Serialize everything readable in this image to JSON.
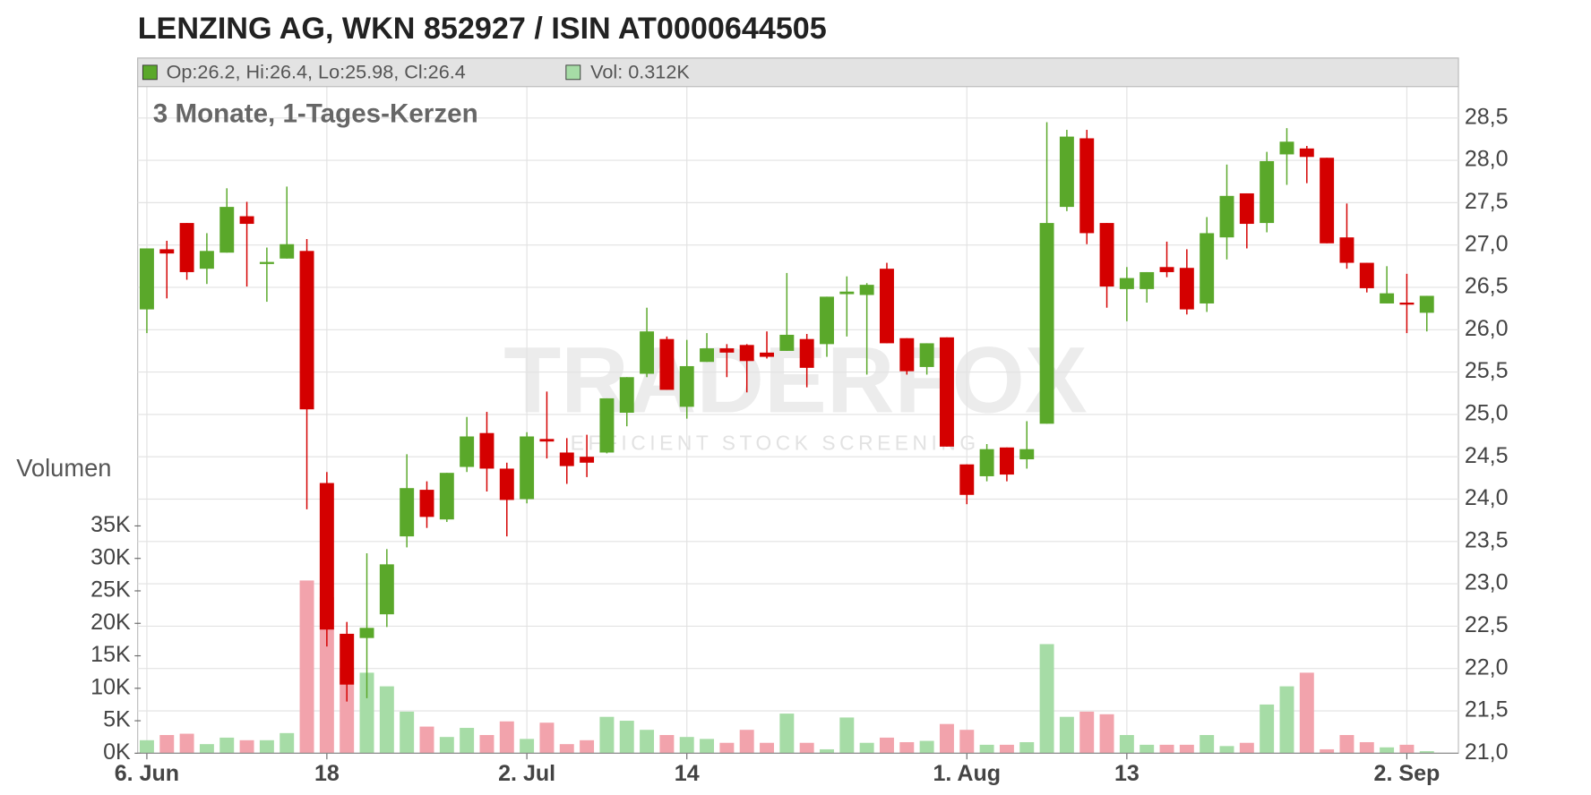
{
  "chart_data": {
    "type": "candlestick",
    "title": "LENZING AG, WKN 852927 / ISIN AT0000644505",
    "subtitle": "3 Monate, 1-Tages-Kerzen",
    "y2_label": "Volumen",
    "watermark": {
      "brand": "TRADERFOX",
      "tagline": "EFFICIENT STOCK SCREENING"
    },
    "categories": [
      "6. Jun",
      null,
      null,
      null,
      null,
      null,
      null,
      null,
      null,
      "18",
      null,
      null,
      null,
      null,
      null,
      null,
      null,
      null,
      null,
      "2. Jul",
      null,
      null,
      null,
      null,
      null,
      null,
      null,
      "14",
      null,
      null,
      null,
      null,
      null,
      null,
      null,
      null,
      null,
      null,
      null,
      null,
      null,
      "1. Aug",
      null,
      null,
      null,
      null,
      null,
      null,
      null,
      "13",
      null,
      null,
      null,
      null,
      null,
      null,
      null,
      null,
      null,
      null,
      null,
      null,
      null,
      "2. Sep",
      null
    ],
    "series": [
      {
        "name": "Op:26.2, Hi:26.4, Lo:25.98, Cl:26.4",
        "color": "#5aa82a",
        "down_color": "#d40000",
        "open": [
          26.24,
          26.95,
          27.26,
          26.72,
          26.91,
          27.34,
          26.79,
          26.84,
          26.93,
          24.19,
          22.41,
          22.36,
          22.64,
          23.56,
          24.11,
          23.76,
          24.38,
          24.78,
          24.36,
          24.0,
          24.71,
          24.55,
          24.5,
          24.55,
          25.02,
          25.48,
          25.89,
          25.09,
          25.62,
          25.78,
          25.82,
          25.73,
          25.75,
          25.89,
          25.83,
          26.42,
          26.41,
          26.72,
          25.9,
          25.56,
          25.91,
          24.41,
          24.27,
          24.61,
          24.47,
          24.89,
          27.45,
          28.26,
          27.26,
          26.48,
          26.48,
          26.74,
          26.73,
          26.31,
          27.09,
          27.61,
          27.26,
          28.07,
          28.14,
          28.03,
          27.09,
          26.79,
          26.31,
          26.32,
          26.2
        ],
        "high": [
          26.96,
          27.05,
          27.26,
          27.14,
          27.67,
          27.51,
          26.97,
          27.69,
          27.07,
          24.32,
          22.55,
          23.36,
          23.41,
          24.53,
          24.21,
          24.31,
          24.97,
          25.03,
          24.43,
          24.79,
          25.27,
          24.72,
          24.76,
          25.19,
          25.44,
          26.26,
          25.92,
          25.88,
          25.96,
          25.83,
          25.83,
          25.98,
          26.67,
          25.95,
          26.39,
          26.63,
          26.55,
          26.79,
          25.9,
          25.84,
          25.91,
          24.41,
          24.65,
          24.61,
          24.92,
          28.45,
          28.36,
          28.36,
          27.26,
          26.74,
          26.68,
          27.04,
          26.95,
          27.33,
          27.95,
          27.61,
          28.1,
          28.38,
          28.17,
          28.03,
          27.49,
          26.79,
          26.75,
          26.66,
          26.4
        ],
        "low": [
          25.96,
          26.37,
          26.59,
          26.54,
          26.91,
          26.51,
          26.33,
          26.84,
          23.88,
          22.26,
          21.61,
          21.65,
          22.49,
          23.43,
          23.66,
          23.73,
          24.32,
          24.09,
          23.56,
          23.95,
          24.48,
          24.18,
          24.26,
          24.54,
          24.86,
          25.44,
          25.29,
          24.95,
          25.62,
          25.44,
          25.26,
          25.66,
          25.75,
          25.32,
          25.68,
          25.92,
          25.47,
          25.84,
          25.47,
          25.47,
          24.62,
          23.94,
          24.21,
          24.21,
          24.36,
          24.89,
          27.4,
          27.01,
          26.26,
          26.1,
          26.32,
          26.62,
          26.18,
          26.21,
          26.83,
          26.96,
          27.15,
          27.71,
          27.73,
          27.02,
          26.72,
          26.44,
          26.31,
          25.96,
          25.98
        ],
        "close": [
          26.96,
          26.9,
          26.68,
          26.93,
          27.45,
          27.25,
          26.8,
          27.01,
          25.06,
          22.46,
          21.81,
          22.48,
          23.23,
          24.13,
          23.79,
          24.31,
          24.74,
          24.36,
          23.99,
          24.74,
          24.68,
          24.39,
          24.43,
          25.19,
          25.44,
          25.98,
          25.29,
          25.57,
          25.78,
          25.73,
          25.63,
          25.68,
          25.94,
          25.55,
          26.39,
          26.45,
          26.53,
          25.84,
          25.51,
          25.84,
          24.62,
          24.05,
          24.59,
          24.29,
          24.59,
          27.26,
          28.28,
          27.14,
          26.51,
          26.61,
          26.68,
          26.68,
          26.24,
          27.14,
          27.58,
          27.25,
          27.99,
          28.22,
          28.04,
          27.02,
          26.79,
          26.49,
          26.43,
          26.3,
          26.4
        ]
      },
      {
        "name": "Vol: 0.312K",
        "type": "bar",
        "axis": "y2",
        "color": "#a6dca6",
        "down_color": "#f2a3ac",
        "values": [
          2.0,
          2.8,
          3.0,
          1.4,
          2.4,
          2.0,
          2.0,
          3.1,
          26.6,
          24.0,
          13.0,
          12.4,
          10.3,
          6.4,
          4.1,
          2.5,
          3.9,
          2.8,
          4.9,
          2.2,
          4.7,
          1.4,
          2.0,
          5.6,
          5.0,
          3.6,
          2.8,
          2.5,
          2.2,
          1.6,
          3.6,
          1.6,
          6.1,
          1.6,
          0.6,
          5.5,
          1.6,
          2.4,
          1.7,
          1.9,
          4.5,
          3.6,
          1.3,
          1.3,
          1.7,
          16.8,
          5.6,
          6.4,
          6.0,
          2.8,
          1.3,
          1.3,
          1.3,
          2.8,
          1.1,
          1.6,
          7.5,
          10.3,
          12.4,
          0.6,
          2.8,
          1.7,
          0.9,
          1.3,
          0.312
        ]
      }
    ],
    "ylim": [
      21,
      28.87
    ],
    "yticks": [
      {
        "value": 21,
        "label": "21,0"
      },
      {
        "value": 21.5,
        "label": "21,5"
      },
      {
        "value": 22,
        "label": "22,0"
      },
      {
        "value": 22.5,
        "label": "22,5"
      },
      {
        "value": 23,
        "label": "23,0"
      },
      {
        "value": 23.5,
        "label": "23,5"
      },
      {
        "value": 24,
        "label": "24,0"
      },
      {
        "value": 24.5,
        "label": "24,5"
      },
      {
        "value": 25,
        "label": "25,0"
      },
      {
        "value": 25.5,
        "label": "25,5"
      },
      {
        "value": 26,
        "label": "26,0"
      },
      {
        "value": 26.5,
        "label": "26,5"
      },
      {
        "value": 27,
        "label": "27,0"
      },
      {
        "value": 27.5,
        "label": "27,5"
      },
      {
        "value": 28,
        "label": "28,0"
      },
      {
        "value": 28.5,
        "label": "28,5"
      }
    ],
    "y2lim": [
      0,
      35
    ],
    "y2ticks": [
      {
        "value": 0,
        "label": "0K"
      },
      {
        "value": 5,
        "label": "5K"
      },
      {
        "value": 10,
        "label": "10K"
      },
      {
        "value": 15,
        "label": "15K"
      },
      {
        "value": 20,
        "label": "20K"
      },
      {
        "value": 25,
        "label": "25K"
      },
      {
        "value": 30,
        "label": "30K"
      },
      {
        "value": 35,
        "label": "35K"
      }
    ],
    "grid": true
  }
}
